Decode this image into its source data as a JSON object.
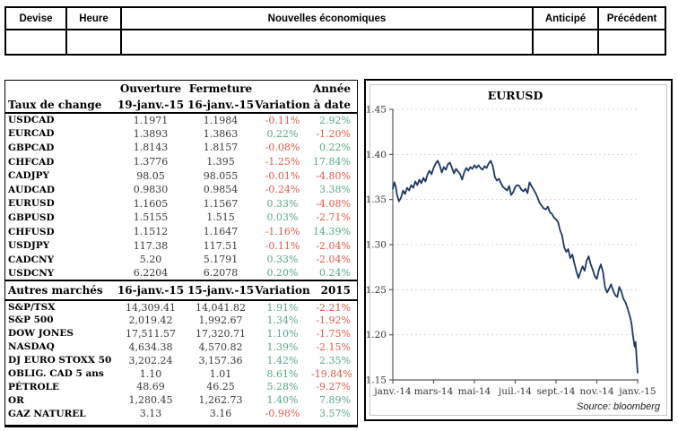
{
  "news_table": {
    "headers": [
      "Devise",
      "Heure",
      "Nouvelles économiques",
      "Anticipé",
      "Précédent"
    ]
  },
  "rates": {
    "title": "Taux de change",
    "col_top": [
      "Ouverture",
      "Fermeture",
      "",
      "Année"
    ],
    "col_bottom": [
      "19-janv.-15",
      "16-janv.-15",
      "Variation",
      "à date"
    ],
    "rows": [
      [
        "USDCAD",
        "1.1971",
        "1.1984",
        "-0.11%",
        "2.92%"
      ],
      [
        "EURCAD",
        "1.3893",
        "1.3863",
        "0.22%",
        "-1.20%"
      ],
      [
        "GBPCAD",
        "1.8143",
        "1.8157",
        "-0.08%",
        "0.22%"
      ],
      [
        "CHFCAD",
        "1.3776",
        "1.395",
        "-1.25%",
        "17.84%"
      ],
      [
        "CADJPY",
        "98.05",
        "98.055",
        "-0.01%",
        "-4.80%"
      ],
      [
        "AUDCAD",
        "0.9830",
        "0.9854",
        "-0.24%",
        "3.38%"
      ],
      [
        "EURUSD",
        "1.1605",
        "1.1567",
        "0.33%",
        "-4.08%"
      ],
      [
        "GBPUSD",
        "1.5155",
        "1.515",
        "0.03%",
        "-2.71%"
      ],
      [
        "CHFUSD",
        "1.1512",
        "1.1647",
        "-1.16%",
        "14.39%"
      ],
      [
        "USDJPY",
        "117.38",
        "117.51",
        "-0.11%",
        "-2.04%"
      ],
      [
        "CADCNY",
        "5.20",
        "5.1791",
        "0.33%",
        "-2.04%"
      ],
      [
        "USDCNY",
        "6.2204",
        "6.2078",
        "0.20%",
        "0.24%"
      ]
    ]
  },
  "markets": {
    "title": "Autres marchés",
    "cols": [
      "16-janv.-15",
      "15-janv.-15",
      "Variation",
      "2015"
    ],
    "rows": [
      [
        "S&P/TSX",
        "14,309.41",
        "14,041.82",
        "1.91%",
        "-2.21%"
      ],
      [
        "S&P 500",
        "2,019.42",
        "1,992.67",
        "1.34%",
        "-1.92%"
      ],
      [
        "DOW JONES",
        "17,511.57",
        "17,320.71",
        "1.10%",
        "-1.75%"
      ],
      [
        "NASDAQ",
        "4,634.38",
        "4,570.82",
        "1.39%",
        "-2.15%"
      ],
      [
        "DJ EURO STOXX 50",
        "3,202.24",
        "3,157.36",
        "1.42%",
        "2.35%"
      ],
      [
        "OBLIG. CAD 5 ans",
        "1.10",
        "1.01",
        "8.61%",
        "-19.84%"
      ],
      [
        "PÉTROLE",
        "48.69",
        "46.25",
        "5.28%",
        "-9.27%"
      ],
      [
        "OR",
        "1,280.45",
        "1,262.73",
        "1.40%",
        "7.89%"
      ],
      [
        "GAZ NATUREL",
        "3.13",
        "3.16",
        "-0.98%",
        "3.57%"
      ]
    ]
  },
  "chart_data": {
    "type": "line",
    "title": "EURUSD",
    "source": "Source: bloomberg",
    "ylim": [
      1.15,
      1.45
    ],
    "ytick_labels": [
      "1.45",
      "1.40",
      "1.35",
      "1.30",
      "1.25",
      "1.20",
      "1.15"
    ],
    "yticks": [
      1.45,
      1.4,
      1.35,
      1.3,
      1.25,
      1.2,
      1.15
    ],
    "xlim_months": [
      0,
      12
    ],
    "xticks": [
      0,
      2,
      4,
      6,
      8,
      10,
      12
    ],
    "xtick_labels": [
      "janv.-14",
      "mars-14",
      "mai-14",
      "juil.-14",
      "sept.-14",
      "nov.-14",
      "janv.-15"
    ],
    "grid": "dotted-horizontal",
    "legend": "none",
    "line_color": "#1f3864",
    "points": [
      [
        0.0,
        1.362
      ],
      [
        0.08,
        1.369
      ],
      [
        0.15,
        1.364
      ],
      [
        0.2,
        1.356
      ],
      [
        0.3,
        1.348
      ],
      [
        0.4,
        1.352
      ],
      [
        0.5,
        1.36
      ],
      [
        0.6,
        1.356
      ],
      [
        0.7,
        1.363
      ],
      [
        0.8,
        1.36
      ],
      [
        0.9,
        1.366
      ],
      [
        1.0,
        1.363
      ],
      [
        1.1,
        1.37
      ],
      [
        1.2,
        1.366
      ],
      [
        1.3,
        1.372
      ],
      [
        1.4,
        1.368
      ],
      [
        1.5,
        1.374
      ],
      [
        1.6,
        1.37
      ],
      [
        1.7,
        1.378
      ],
      [
        1.8,
        1.382
      ],
      [
        1.9,
        1.378
      ],
      [
        2.0,
        1.385
      ],
      [
        2.1,
        1.39
      ],
      [
        2.2,
        1.393
      ],
      [
        2.3,
        1.388
      ],
      [
        2.4,
        1.38
      ],
      [
        2.5,
        1.386
      ],
      [
        2.6,
        1.383
      ],
      [
        2.7,
        1.389
      ],
      [
        2.8,
        1.391
      ],
      [
        2.9,
        1.385
      ],
      [
        3.0,
        1.379
      ],
      [
        3.1,
        1.384
      ],
      [
        3.2,
        1.381
      ],
      [
        3.3,
        1.378
      ],
      [
        3.4,
        1.372
      ],
      [
        3.5,
        1.38
      ],
      [
        3.6,
        1.385
      ],
      [
        3.7,
        1.382
      ],
      [
        3.8,
        1.386
      ],
      [
        3.9,
        1.384
      ],
      [
        4.0,
        1.388
      ],
      [
        4.1,
        1.385
      ],
      [
        4.2,
        1.388
      ],
      [
        4.3,
        1.385
      ],
      [
        4.4,
        1.383
      ],
      [
        4.5,
        1.387
      ],
      [
        4.6,
        1.385
      ],
      [
        4.7,
        1.39
      ],
      [
        4.8,
        1.393
      ],
      [
        4.9,
        1.387
      ],
      [
        5.0,
        1.375
      ],
      [
        5.1,
        1.371
      ],
      [
        5.2,
        1.373
      ],
      [
        5.3,
        1.368
      ],
      [
        5.4,
        1.364
      ],
      [
        5.5,
        1.362
      ],
      [
        5.6,
        1.36
      ],
      [
        5.7,
        1.365
      ],
      [
        5.8,
        1.355
      ],
      [
        5.9,
        1.358
      ],
      [
        6.0,
        1.364
      ],
      [
        6.1,
        1.366
      ],
      [
        6.2,
        1.365
      ],
      [
        6.3,
        1.361
      ],
      [
        6.4,
        1.359
      ],
      [
        6.5,
        1.362
      ],
      [
        6.6,
        1.357
      ],
      [
        6.7,
        1.369
      ],
      [
        6.8,
        1.365
      ],
      [
        6.9,
        1.361
      ],
      [
        7.0,
        1.357
      ],
      [
        7.1,
        1.352
      ],
      [
        7.2,
        1.346
      ],
      [
        7.3,
        1.343
      ],
      [
        7.4,
        1.34
      ],
      [
        7.5,
        1.339
      ],
      [
        7.6,
        1.342
      ],
      [
        7.7,
        1.336
      ],
      [
        7.8,
        1.334
      ],
      [
        7.9,
        1.33
      ],
      [
        8.0,
        1.328
      ],
      [
        8.1,
        1.325
      ],
      [
        8.2,
        1.316
      ],
      [
        8.3,
        1.31
      ],
      [
        8.4,
        1.297
      ],
      [
        8.5,
        1.292
      ],
      [
        8.6,
        1.295
      ],
      [
        8.7,
        1.285
      ],
      [
        8.8,
        1.289
      ],
      [
        8.9,
        1.279
      ],
      [
        9.0,
        1.27
      ],
      [
        9.1,
        1.263
      ],
      [
        9.2,
        1.27
      ],
      [
        9.3,
        1.276
      ],
      [
        9.4,
        1.271
      ],
      [
        9.5,
        1.282
      ],
      [
        9.6,
        1.287
      ],
      [
        9.7,
        1.278
      ],
      [
        9.8,
        1.272
      ],
      [
        9.9,
        1.265
      ],
      [
        10.0,
        1.262
      ],
      [
        10.1,
        1.272
      ],
      [
        10.2,
        1.278
      ],
      [
        10.3,
        1.27
      ],
      [
        10.4,
        1.253
      ],
      [
        10.5,
        1.247
      ],
      [
        10.6,
        1.251
      ],
      [
        10.7,
        1.256
      ],
      [
        10.8,
        1.249
      ],
      [
        10.9,
        1.244
      ],
      [
        11.0,
        1.242
      ],
      [
        11.1,
        1.253
      ],
      [
        11.2,
        1.248
      ],
      [
        11.3,
        1.24
      ],
      [
        11.4,
        1.236
      ],
      [
        11.5,
        1.23
      ],
      [
        11.6,
        1.222
      ],
      [
        11.65,
        1.218
      ],
      [
        11.7,
        1.212
      ],
      [
        11.75,
        1.203
      ],
      [
        11.8,
        1.195
      ],
      [
        11.85,
        1.187
      ],
      [
        11.9,
        1.192
      ],
      [
        11.95,
        1.173
      ],
      [
        12.0,
        1.158
      ]
    ]
  }
}
